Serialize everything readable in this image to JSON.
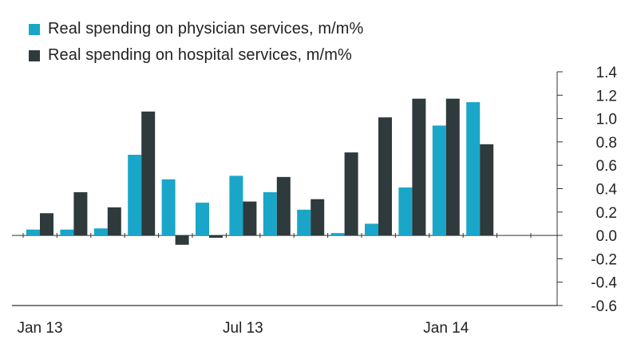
{
  "chart_data": {
    "type": "bar",
    "x_tick_labels": [
      "Jan 13",
      "Jul 13",
      "Jan 14"
    ],
    "series": [
      {
        "name": "Real spending on physician services, m/m%",
        "color": "#1aa6c9",
        "values": [
          0.05,
          0.05,
          0.06,
          0.69,
          0.48,
          0.28,
          0.51,
          0.37,
          0.22,
          0.02,
          0.1,
          0.41,
          0.94,
          1.14,
          null
        ]
      },
      {
        "name": "Real spending on hospital services, m/m%",
        "color": "#2e3a3c",
        "values": [
          0.19,
          0.37,
          0.24,
          1.06,
          -0.08,
          -0.02,
          0.29,
          0.5,
          0.31,
          0.71,
          1.01,
          1.17,
          1.17,
          0.78,
          null
        ]
      }
    ],
    "y_ticks": [
      "1.4",
      "1.2",
      "1.0",
      "0.8",
      "0.6",
      "0.4",
      "0.2",
      "0.0",
      "-0.2",
      "-0.4",
      "-0.6"
    ],
    "ylim": [
      -0.6,
      1.4
    ],
    "y_axis_position": "right",
    "grid": false,
    "legend_position": "top-left"
  }
}
